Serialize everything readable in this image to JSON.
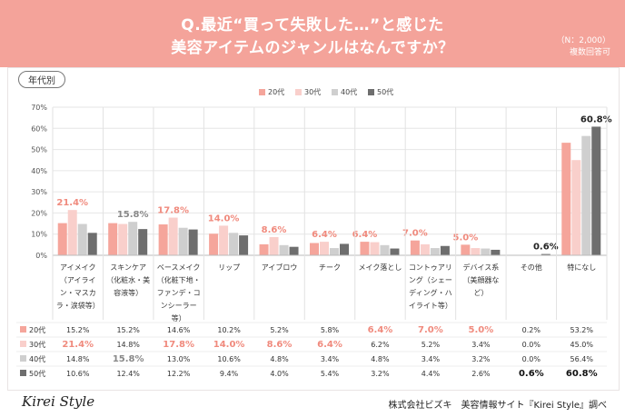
{
  "header": {
    "title_line1": "Q.最近“買って失敗した…”と感じた",
    "title_line2": "美容アイテムのジャンルはなんですか？",
    "sample_size": "（N：2,000）",
    "answer_note": "複数回答可"
  },
  "panel": {
    "group_label": "年代別"
  },
  "footer": {
    "logo": "Kirei Style",
    "credit": "株式会社ビズキ　美容情報サイト『Kirei Style』調べ"
  },
  "colors": {
    "s20": "#f5a59b",
    "s30": "#f9cfcb",
    "s40": "#cfcfcf",
    "s50": "#6e6e6e",
    "highlight": "#f08a7d",
    "header": "#f4a39a"
  },
  "chart_data": {
    "type": "bar",
    "title": "最近“買って失敗した…”と感じた美容アイテムのジャンル（年代別）",
    "ylabel": "",
    "ylim": [
      0,
      70
    ],
    "yticks": [
      "0%",
      "10%",
      "20%",
      "30%",
      "40%",
      "50%",
      "60%",
      "70%"
    ],
    "categories": [
      [
        "アイメイク",
        "（アイライ",
        "ン・マスカ",
        "ラ・涙袋等）"
      ],
      [
        "スキンケア",
        "（化粧水・美",
        "容液等）"
      ],
      [
        "ベースメイク",
        "（化粧下地・",
        "ファンデ・コ",
        "ンシーラー",
        "等）"
      ],
      [
        "リップ"
      ],
      [
        "アイブロウ"
      ],
      [
        "チーク"
      ],
      [
        "メイク落とし"
      ],
      [
        "コントゥアリ",
        "ング（シェー",
        "ディング・ハ",
        "イライト等）"
      ],
      [
        "デバイス系",
        "（美顔器な",
        "ど）"
      ],
      [
        "その他"
      ],
      [
        "特になし"
      ]
    ],
    "series": [
      {
        "name": "20代",
        "values": [
          15.2,
          15.2,
          14.6,
          10.2,
          5.2,
          5.8,
          6.4,
          7.0,
          5.0,
          0.2,
          53.2
        ],
        "labels": [
          "15.2%",
          "15.2%",
          "14.6%",
          "10.2%",
          "5.2%",
          "5.8%",
          "6.4%",
          "7.0%",
          "5.0%",
          "0.2%",
          "53.2%"
        ]
      },
      {
        "name": "30代",
        "values": [
          21.4,
          14.8,
          17.8,
          14.0,
          8.6,
          6.4,
          6.2,
          5.2,
          3.4,
          0.0,
          45.0
        ],
        "labels": [
          "21.4%",
          "14.8%",
          "17.8%",
          "14.0%",
          "8.6%",
          "6.4%",
          "6.2%",
          "5.2%",
          "3.4%",
          "0.0%",
          "45.0%"
        ]
      },
      {
        "name": "40代",
        "values": [
          14.8,
          15.8,
          13.0,
          10.6,
          4.8,
          3.4,
          4.8,
          3.4,
          3.2,
          0.0,
          56.4
        ],
        "labels": [
          "14.8%",
          "15.8%",
          "13.0%",
          "10.6%",
          "4.8%",
          "3.4%",
          "4.8%",
          "3.4%",
          "3.2%",
          "0.0%",
          "56.4%"
        ]
      },
      {
        "name": "50代",
        "values": [
          10.6,
          12.4,
          12.2,
          9.4,
          4.0,
          5.4,
          3.2,
          4.4,
          2.6,
          0.6,
          60.8
        ],
        "labels": [
          "10.6%",
          "12.4%",
          "12.2%",
          "9.4%",
          "4.0%",
          "5.4%",
          "3.2%",
          "4.4%",
          "2.6%",
          "0.6%",
          "60.8%"
        ]
      }
    ],
    "callouts": [
      {
        "series": 1,
        "cat": 0,
        "text": "21.4%"
      },
      {
        "series": 2,
        "cat": 1,
        "text": "15.8%"
      },
      {
        "series": 1,
        "cat": 2,
        "text": "17.8%"
      },
      {
        "series": 1,
        "cat": 3,
        "text": "14.0%"
      },
      {
        "series": 1,
        "cat": 4,
        "text": "8.6%"
      },
      {
        "series": 1,
        "cat": 5,
        "text": "6.4%"
      },
      {
        "series": 0,
        "cat": 6,
        "text": "6.4%"
      },
      {
        "series": 0,
        "cat": 7,
        "text": "7.0%"
      },
      {
        "series": 0,
        "cat": 8,
        "text": "5.0%"
      },
      {
        "series": 3,
        "cat": 9,
        "text": "0.6%"
      },
      {
        "series": 3,
        "cat": 10,
        "text": "60.8%"
      }
    ],
    "table_highlights": [
      {
        "series": 1,
        "cat": 0
      },
      {
        "series": 2,
        "cat": 1
      },
      {
        "series": 1,
        "cat": 2
      },
      {
        "series": 1,
        "cat": 3
      },
      {
        "series": 1,
        "cat": 4
      },
      {
        "series": 1,
        "cat": 5
      },
      {
        "series": 0,
        "cat": 6
      },
      {
        "series": 0,
        "cat": 7
      },
      {
        "series": 0,
        "cat": 8
      },
      {
        "series": 3,
        "cat": 9
      },
      {
        "series": 3,
        "cat": 10
      }
    ],
    "legend_position": "top-center"
  }
}
